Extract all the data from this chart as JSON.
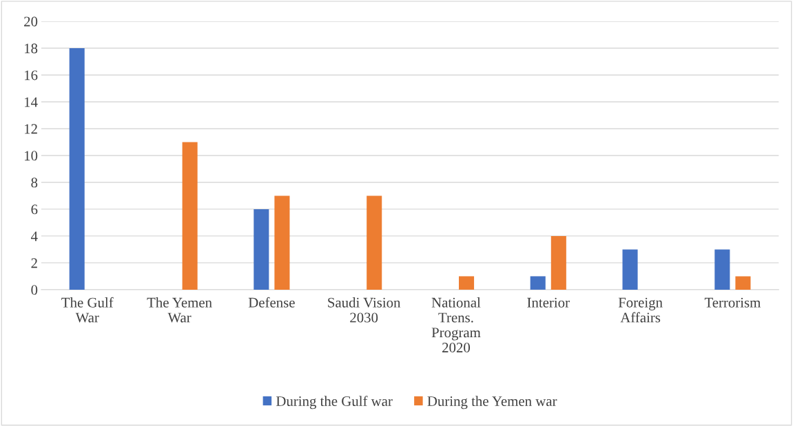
{
  "chart_data": {
    "type": "bar",
    "categories": [
      "The Gulf\nWar",
      "The Yemen\nWar",
      "Defense",
      "Saudi Vision\n2030",
      "National\nTrens.\nProgram\n2020",
      "Interior",
      "Foreign\nAffairs",
      "Terrorism"
    ],
    "series": [
      {
        "name": "During the Gulf war",
        "color": "#4472c4",
        "values": [
          18,
          0,
          6,
          0,
          0,
          1,
          3,
          3
        ]
      },
      {
        "name": "During the Yemen war",
        "color": "#ed7d31",
        "values": [
          0,
          11,
          7,
          7,
          1,
          4,
          0,
          1
        ]
      }
    ],
    "ylim": [
      0,
      20
    ],
    "yticks": [
      0,
      2,
      4,
      6,
      8,
      10,
      12,
      14,
      16,
      18,
      20
    ],
    "grid": "y",
    "legend": "bottom"
  }
}
